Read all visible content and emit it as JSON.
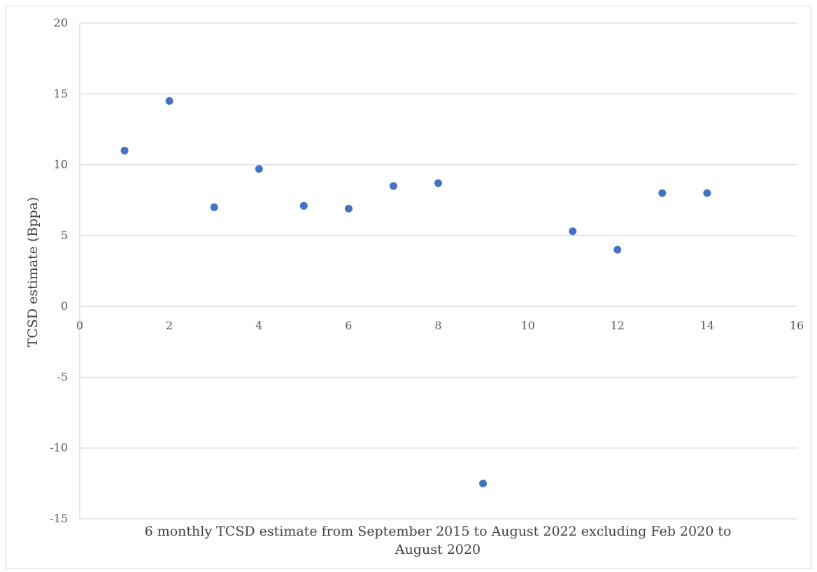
{
  "chart_data": {
    "type": "scatter",
    "title": "",
    "xlabel": "6 monthly TCSD estimate from September 2015 to August 2022 excluding Feb 2020 to August 2020",
    "xlabel_lines": [
      "6 monthly TCSD estimate from September 2015 to August 2022 excluding Feb 2020 to",
      "August 2020"
    ],
    "ylabel": "TCSD estimate (Bppa)",
    "xlim": [
      0,
      16
    ],
    "ylim": [
      -15,
      20
    ],
    "x_ticks": [
      0,
      2,
      4,
      6,
      8,
      10,
      12,
      14,
      16
    ],
    "y_ticks": [
      20,
      15,
      10,
      5,
      0,
      -5,
      -10,
      -15
    ],
    "grid": "horizontal",
    "marker_color": "#4472c4",
    "gridline_color": "#d9d9d9",
    "points": [
      {
        "x": 1,
        "y": 11.0
      },
      {
        "x": 2,
        "y": 14.5
      },
      {
        "x": 3,
        "y": 7.0
      },
      {
        "x": 4,
        "y": 9.7
      },
      {
        "x": 5,
        "y": 7.1
      },
      {
        "x": 6,
        "y": 6.9
      },
      {
        "x": 7,
        "y": 8.5
      },
      {
        "x": 8,
        "y": 8.7
      },
      {
        "x": 9,
        "y": -12.5
      },
      {
        "x": 11,
        "y": 5.3
      },
      {
        "x": 12,
        "y": 4.0
      },
      {
        "x": 13,
        "y": 8.0
      },
      {
        "x": 14,
        "y": 8.0
      }
    ]
  }
}
